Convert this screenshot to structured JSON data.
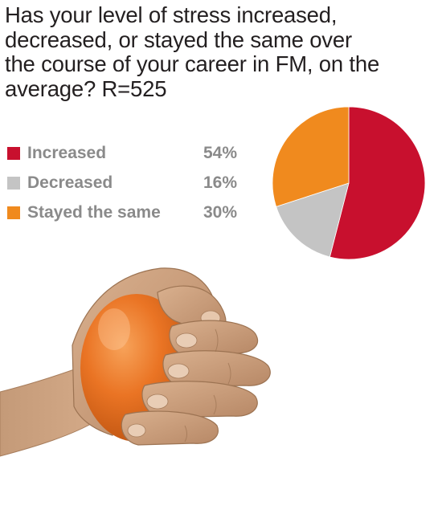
{
  "title": "Has your level of stress increased, decreased, or stayed the same over the course of your career in FM, on the average? R=525",
  "legend": {
    "items": [
      {
        "label": "Increased",
        "value": "54%",
        "color": "#c8102e"
      },
      {
        "label": "Decreased",
        "value": "16%",
        "color": "#c4c4c4"
      },
      {
        "label": "Stayed the same",
        "value": "30%",
        "color": "#f08a1e"
      }
    ]
  },
  "chart_data": {
    "type": "pie",
    "title": "Has your level of stress increased, decreased, or stayed the same over the course of your career in FM, on the average? R=525",
    "categories": [
      "Increased",
      "Decreased",
      "Stayed the same"
    ],
    "values": [
      54,
      16,
      30
    ],
    "colors": [
      "#c8102e",
      "#c4c4c4",
      "#f08a1e"
    ],
    "legend_placement": "left"
  },
  "illustration": {
    "subject": "hand-squeezing-stress-ball-icon"
  }
}
